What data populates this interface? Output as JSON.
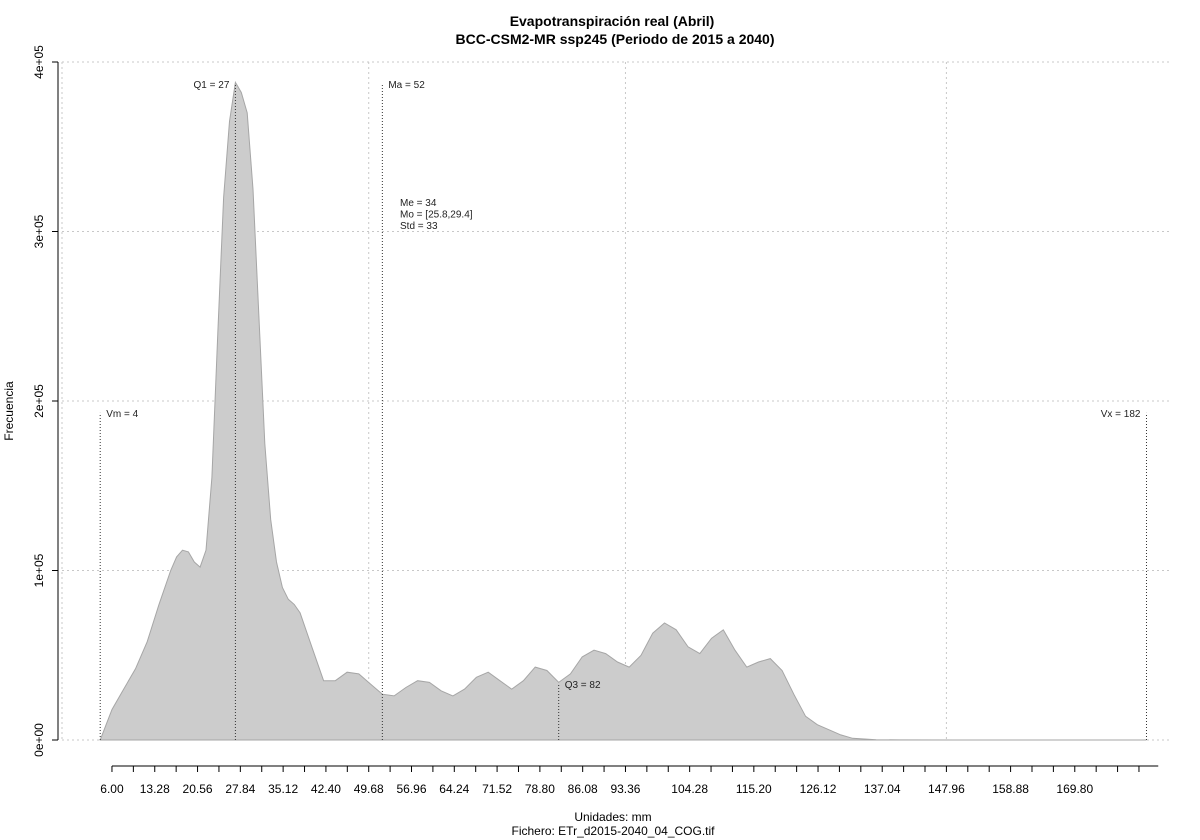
{
  "chart_data": {
    "type": "area",
    "title": "Evapotranspiración real (Abril)",
    "subtitle": "BCC-CSM2-MR ssp245 (Periodo de 2015 a 2040)",
    "xlabel": "Unidades: mm",
    "ylabel": "Frecuencia",
    "footer": "Fichero: ETr_d2015-2040_04_COG.tif",
    "xlim": [
      -2.5,
      186
    ],
    "ylim": [
      0,
      400000
    ],
    "grid": true,
    "fill_color": "#cccccc",
    "line_color": "#a6a6a6",
    "x_ticks": [
      6.0,
      13.28,
      20.56,
      27.84,
      35.12,
      42.4,
      49.68,
      56.96,
      64.24,
      71.52,
      78.8,
      86.08,
      93.36,
      104.28,
      115.2,
      126.12,
      137.04,
      147.96,
      158.88,
      169.8
    ],
    "x_tick_labels": [
      "6.00",
      "13.28",
      "20.56",
      "27.84",
      "35.12",
      "42.40",
      "49.68",
      "56.96",
      "64.24",
      "71.52",
      "78.80",
      "86.08",
      "93.36",
      "104.28",
      "115.20",
      "126.12",
      "137.04",
      "147.96",
      "158.88",
      "169.80"
    ],
    "y_ticks": [
      0,
      100000,
      200000,
      300000,
      400000
    ],
    "y_tick_labels": [
      "0e+00",
      "1e+05",
      "2e+05",
      "3e+05",
      "4e+05"
    ],
    "grid_x": [
      -2.5,
      49.68,
      93.36,
      147.96
    ],
    "x": [
      4,
      5,
      6,
      8,
      10,
      12,
      14,
      16,
      17,
      18,
      19,
      20,
      21,
      22,
      23,
      24,
      25,
      26,
      27,
      28,
      29,
      30,
      31,
      32,
      33,
      34,
      35,
      36,
      37,
      38,
      40,
      42,
      44,
      46,
      48,
      50,
      52,
      54,
      56,
      58,
      60,
      62,
      64,
      66,
      68,
      70,
      72,
      74,
      76,
      78,
      80,
      82,
      84,
      86,
      88,
      90,
      92,
      94,
      96,
      98,
      100,
      102,
      104,
      106,
      108,
      110,
      112,
      114,
      116,
      118,
      120,
      122,
      124,
      126,
      128,
      130,
      132,
      136,
      140,
      150,
      160,
      170,
      180,
      182
    ],
    "y": [
      0,
      9000,
      18000,
      30000,
      42000,
      58000,
      80000,
      100000,
      108000,
      112000,
      111000,
      105000,
      102000,
      112000,
      155000,
      240000,
      320000,
      365000,
      388000,
      382000,
      370000,
      325000,
      250000,
      175000,
      130000,
      105000,
      90000,
      83000,
      80000,
      75000,
      55000,
      35000,
      35000,
      40000,
      39000,
      33000,
      27000,
      26000,
      31000,
      35000,
      34000,
      29000,
      26000,
      30000,
      37000,
      40000,
      35000,
      30000,
      35000,
      43000,
      41000,
      34000,
      39000,
      49000,
      53000,
      51000,
      46000,
      43000,
      50000,
      63000,
      69000,
      65000,
      55000,
      51000,
      60000,
      65000,
      53000,
      43000,
      46000,
      48000,
      41000,
      27000,
      14000,
      9000,
      6000,
      3000,
      1000,
      200,
      50,
      0,
      0,
      0,
      0,
      0
    ],
    "markers": [
      {
        "label": "Vm = 4",
        "x": 4,
        "top": 193000,
        "label_side": "right"
      },
      {
        "label": "Q1 = 27",
        "x": 27,
        "top": 387000,
        "label_side": "left"
      },
      {
        "label": "Ma = 52",
        "x": 52,
        "top": 387000,
        "label_side": "right"
      },
      {
        "label": "Q3 = 82",
        "x": 82,
        "top": 33000,
        "label_side": "right"
      },
      {
        "label": "Vx = 182",
        "x": 182,
        "top": 193000,
        "label_side": "left"
      }
    ],
    "stats": [
      "Me = 34",
      "Mo = [25.8,29.4]",
      "Std = 33"
    ]
  }
}
